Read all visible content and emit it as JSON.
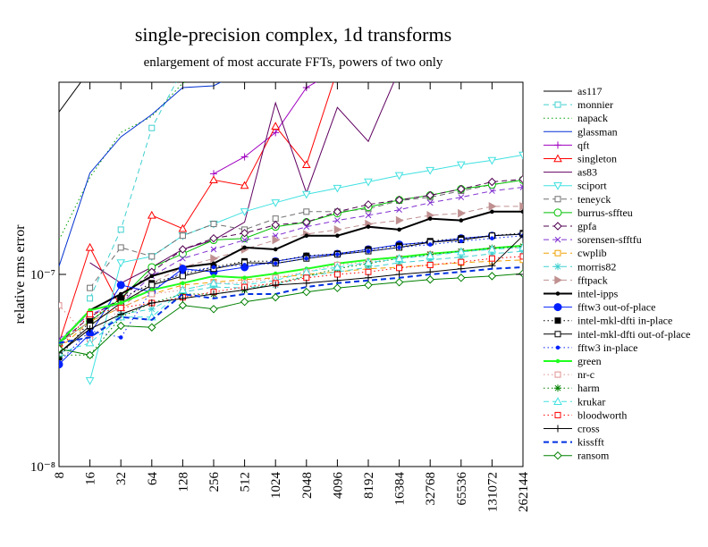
{
  "chart_data": {
    "type": "line",
    "title": "single-precision complex, 1d transforms",
    "subtitle": "enlargement of most accurate FFTs, powers of two only",
    "y_label": "relative rms error",
    "log_scale": true,
    "ylim": [
      1e-08,
      1e-06
    ],
    "yticks": [
      {
        "value": 1e-08,
        "label": "10⁻⁸"
      },
      {
        "value": 1e-07,
        "label": "10⁻⁷"
      }
    ],
    "categories": [
      "8",
      "16",
      "32",
      "64",
      "128",
      "256",
      "512",
      "1024",
      "2048",
      "4096",
      "8192",
      "16384",
      "32768",
      "65536",
      "131072",
      "262144"
    ],
    "series": [
      {
        "name": "as117",
        "color": "#000000",
        "dash": "solid",
        "marker": "none",
        "values": [
          7e-07,
          1.16e-06,
          null,
          null,
          null,
          null,
          null,
          null,
          null,
          null,
          null,
          null,
          null,
          null,
          null,
          null
        ]
      },
      {
        "name": "monnier",
        "color": "#40d0d0",
        "dash": "dashed",
        "marker": "square-open",
        "values": [
          null,
          7.5e-08,
          1.71e-07,
          5.78e-07,
          1.16e-06,
          null,
          null,
          null,
          null,
          null,
          null,
          null,
          null,
          null,
          null,
          null
        ]
      },
      {
        "name": "napack",
        "color": "#00a000",
        "dash": "dotted",
        "marker": "none",
        "values": [
          1.51e-07,
          3.2e-07,
          5.47e-07,
          6.64e-07,
          9.89e-07,
          1.16e-06,
          null,
          null,
          null,
          null,
          null,
          null,
          null,
          null,
          null,
          null
        ]
      },
      {
        "name": "glassman",
        "color": "#0030d0",
        "dash": "solid",
        "marker": "none",
        "values": [
          1.1e-07,
          3.37e-07,
          5.19e-07,
          6.79e-07,
          9.38e-07,
          9.58e-07,
          1.16e-06,
          null,
          null,
          null,
          null,
          null,
          null,
          null,
          null,
          null
        ]
      },
      {
        "name": "qft",
        "color": "#a000c0",
        "dash": "solid",
        "marker": "plus",
        "values": [
          null,
          null,
          null,
          null,
          null,
          3.34e-07,
          4.09e-07,
          5.47e-07,
          9.38e-07,
          1.16e-06,
          null,
          null,
          null,
          null,
          null,
          null
        ]
      },
      {
        "name": "singleton",
        "color": "#ff0000",
        "dash": "solid",
        "marker": "triangle-open",
        "values": [
          4.4e-08,
          1.38e-07,
          6.7e-08,
          2.03e-07,
          1.73e-07,
          3.1e-07,
          2.9e-07,
          5.9e-07,
          3.72e-07,
          1.16e-06,
          null,
          null,
          null,
          null,
          null,
          null
        ]
      },
      {
        "name": "as83",
        "color": "#600060",
        "dash": "solid",
        "marker": "none",
        "values": [
          null,
          1.15e-07,
          9e-08,
          1.09e-07,
          1.35e-07,
          1.51e-07,
          1.87e-07,
          7.81e-07,
          2.66e-07,
          7.39e-07,
          4.92e-07,
          1.16e-06,
          null,
          null,
          null,
          null
        ]
      },
      {
        "name": "sciport",
        "color": "#40e0e0",
        "dash": "solid",
        "marker": "tridown-open",
        "values": [
          null,
          2.8e-08,
          1.15e-07,
          1.24e-07,
          1.59e-07,
          1.83e-07,
          2.12e-07,
          2.36e-07,
          2.61e-07,
          2.81e-07,
          3.03e-07,
          3.27e-07,
          3.48e-07,
          3.72e-07,
          3.92e-07,
          4.18e-07
        ]
      },
      {
        "name": "teneyck",
        "color": "#707070",
        "dash": "dashed",
        "marker": "square-open",
        "values": [
          null,
          8.5e-08,
          1.38e-07,
          1.24e-07,
          1.59e-07,
          1.83e-07,
          1.71e-07,
          1.95e-07,
          2.12e-07,
          2.12e-07,
          2.19e-07,
          2.42e-07,
          2.52e-07,
          2.72e-07,
          2.93e-07,
          3.1e-07
        ]
      },
      {
        "name": "burrus-sffteu",
        "color": "#00c000",
        "dash": "solid",
        "marker": "circle-open",
        "values": [
          4.4e-08,
          5.7e-08,
          7.5e-08,
          1.09e-07,
          1.28e-07,
          1.51e-07,
          1.54e-07,
          1.77e-07,
          1.87e-07,
          2.08e-07,
          2.24e-07,
          2.44e-07,
          2.58e-07,
          2.78e-07,
          2.93e-07,
          3.1e-07
        ]
      },
      {
        "name": "gpfa",
        "color": "#500050",
        "dash": "dashed",
        "marker": "diamond-open",
        "values": [
          4.4e-08,
          6e-08,
          7.5e-08,
          1.03e-07,
          1.35e-07,
          1.54e-07,
          1.64e-07,
          1.81e-07,
          1.87e-07,
          2.12e-07,
          2.31e-07,
          2.44e-07,
          2.58e-07,
          2.78e-07,
          3.03e-07,
          3.13e-07
        ]
      },
      {
        "name": "sorensen-sfftfu",
        "color": "#8030d0",
        "dash": "dashed",
        "marker": "cross",
        "values": [
          4.6e-08,
          6.2e-08,
          7.1e-08,
          9.8e-08,
          1.21e-07,
          1.35e-07,
          1.51e-07,
          1.59e-07,
          1.77e-07,
          1.91e-07,
          2.03e-07,
          2.17e-07,
          2.36e-07,
          2.52e-07,
          2.72e-07,
          2.84e-07
        ]
      },
      {
        "name": "cwplib",
        "color": "#f0a000",
        "dash": "dashed",
        "marker": "square-open",
        "values": [
          4.1e-08,
          5.7e-08,
          6.7e-08,
          7.9e-08,
          8.8e-08,
          9.1e-08,
          9.4e-08,
          9.6e-08,
          1e-07,
          1.03e-07,
          1.07e-07,
          1.09e-07,
          1.12e-07,
          1.15e-07,
          1.17e-07,
          1.19e-07
        ]
      },
      {
        "name": "morris82",
        "color": "#40d0d0",
        "dash": "dashed",
        "marker": "star",
        "values": [
          4.4e-08,
          4.7e-08,
          6.2e-08,
          6.6e-08,
          8.1e-08,
          8.6e-08,
          8.5e-08,
          8.8e-08,
          9.8e-08,
          1.03e-07,
          1.09e-07,
          1.15e-07,
          1.19e-07,
          1.23e-07,
          1.28e-07,
          1.32e-07
        ]
      },
      {
        "name": "fftpack",
        "color": "#c09090",
        "dash": "dashed",
        "marker": "triright-filled",
        "values": [
          4.4e-08,
          5.7e-08,
          6.7e-08,
          9e-08,
          1.09e-07,
          1.21e-07,
          1.35e-07,
          1.51e-07,
          1.62e-07,
          1.71e-07,
          1.83e-07,
          1.91e-07,
          2.03e-07,
          2.08e-07,
          2.26e-07,
          2.26e-07
        ]
      },
      {
        "name": "intel-ipps",
        "color": "#000000",
        "dash": "solid",
        "width": 2,
        "marker": "dot",
        "values": [
          4.4e-08,
          6.5e-08,
          7.9e-08,
          9.8e-08,
          1.09e-07,
          1.14e-07,
          1.38e-07,
          1.35e-07,
          1.59e-07,
          1.59e-07,
          1.77e-07,
          1.71e-07,
          1.95e-07,
          1.91e-07,
          2.12e-07,
          2.12e-07
        ]
      },
      {
        "name": "fftw3 out-of-place",
        "color": "#0020ff",
        "dash": "solid",
        "marker": "circle-filled",
        "values": [
          3.4e-08,
          4.9e-08,
          8.8e-08,
          8.1e-08,
          1.07e-07,
          1.03e-07,
          1.09e-07,
          1.17e-07,
          1.24e-07,
          1.28e-07,
          1.35e-07,
          1.43e-07,
          1.47e-07,
          1.54e-07,
          1.59e-07,
          1.62e-07
        ]
      },
      {
        "name": "intel-mkl-dfti in-place",
        "color": "#000000",
        "dash": "dotted",
        "marker": "square-filled",
        "values": [
          3.7e-08,
          5.7e-08,
          7.5e-08,
          9e-08,
          1e-07,
          1.09e-07,
          1.17e-07,
          1.17e-07,
          1.25e-07,
          1.28e-07,
          1.35e-07,
          1.41e-07,
          1.49e-07,
          1.54e-07,
          1.59e-07,
          1.64e-07
        ]
      },
      {
        "name": "intel-mkl-dfti out-of-place",
        "color": "#000000",
        "dash": "solid",
        "marker": "square-open",
        "values": [
          3.9e-08,
          5.4e-08,
          7.1e-08,
          8.8e-08,
          9.8e-08,
          1.07e-07,
          1.15e-07,
          1.14e-07,
          1.21e-07,
          1.27e-07,
          1.32e-07,
          1.38e-07,
          1.47e-07,
          1.51e-07,
          1.59e-07,
          1.62e-07
        ]
      },
      {
        "name": "fftw3 in-place",
        "color": "#0020ff",
        "dash": "dotted",
        "marker": "dot",
        "values": [
          3.5e-08,
          5.1e-08,
          4.7e-08,
          8.3e-08,
          1.03e-07,
          1.09e-07,
          1.12e-07,
          1.14e-07,
          1.21e-07,
          1.27e-07,
          1.32e-07,
          1.38e-07,
          1.43e-07,
          1.49e-07,
          1.54e-07,
          1.59e-07
        ]
      },
      {
        "name": "green",
        "color": "#20ff20",
        "dash": "solid",
        "width": 2,
        "marker": "dot",
        "values": [
          4.4e-08,
          6.5e-08,
          7.1e-08,
          8.3e-08,
          9e-08,
          9.8e-08,
          9.6e-08,
          1.01e-07,
          1.07e-07,
          1.14e-07,
          1.19e-07,
          1.23e-07,
          1.28e-07,
          1.32e-07,
          1.37e-07,
          1.41e-07
        ]
      },
      {
        "name": "nr-c",
        "color": "#e09090",
        "dash": "dotted",
        "marker": "square-open",
        "values": [
          6.9e-08,
          4.6e-08,
          6.7e-08,
          7.9e-08,
          8.3e-08,
          9e-08,
          9e-08,
          9.6e-08,
          1.03e-07,
          1.12e-07,
          1.16e-07,
          1.21e-07,
          1.27e-07,
          1.31e-07,
          1.35e-07,
          1.38e-07
        ]
      },
      {
        "name": "harm",
        "color": "#008000",
        "dash": "dotted",
        "marker": "star",
        "values": [
          3.8e-08,
          3.8e-08,
          6e-08,
          7.1e-08,
          7.9e-08,
          7.9e-08,
          8.3e-08,
          9e-08,
          9.8e-08,
          1.07e-07,
          1.14e-07,
          1.21e-07,
          1.27e-07,
          1.32e-07,
          1.37e-07,
          1.4e-07
        ]
      },
      {
        "name": "krukar",
        "color": "#40e0e0",
        "dash": "dashed",
        "marker": "triangle-open",
        "values": [
          3.9e-08,
          4.4e-08,
          6e-08,
          6e-08,
          8.3e-08,
          9e-08,
          8.8e-08,
          9.3e-08,
          1.03e-07,
          1.09e-07,
          1.15e-07,
          1.21e-07,
          1.25e-07,
          1.31e-07,
          1.35e-07,
          1.38e-07
        ]
      },
      {
        "name": "bloodworth",
        "color": "#ff0000",
        "dash": "dotted",
        "marker": "square-open",
        "values": [
          4.1e-08,
          6.2e-08,
          6.7e-08,
          7.1e-08,
          7.6e-08,
          8.1e-08,
          8.6e-08,
          9e-08,
          9.6e-08,
          1e-07,
          1.03e-07,
          1.08e-07,
          1.12e-07,
          1.16e-07,
          1.21e-07,
          1.24e-07
        ]
      },
      {
        "name": "cross",
        "color": "#000000",
        "dash": "solid",
        "marker": "plus",
        "values": [
          3.9e-08,
          5.2e-08,
          6.2e-08,
          7.1e-08,
          7.5e-08,
          7.9e-08,
          8.3e-08,
          8.8e-08,
          9e-08,
          9.3e-08,
          9.6e-08,
          1e-07,
          1.03e-07,
          1.07e-07,
          1.11e-07,
          1.59e-07
        ]
      },
      {
        "name": "kissfft",
        "color": "#0030e0",
        "dash": "dashed",
        "width": 2,
        "marker": "none",
        "values": [
          4.4e-08,
          4.7e-08,
          6e-08,
          5.8e-08,
          7.9e-08,
          7.5e-08,
          7.9e-08,
          7.9e-08,
          8.6e-08,
          9e-08,
          9.3e-08,
          9.6e-08,
          1e-07,
          1.03e-07,
          1.07e-07,
          1.09e-07
        ]
      },
      {
        "name": "ransom",
        "color": "#008000",
        "dash": "solid",
        "marker": "diamond-open",
        "values": [
          4.1e-08,
          3.8e-08,
          5.4e-08,
          5.3e-08,
          6.9e-08,
          6.6e-08,
          7.2e-08,
          7.6e-08,
          8.1e-08,
          8.5e-08,
          8.8e-08,
          9.1e-08,
          9.4e-08,
          9.6e-08,
          9.8e-08,
          1.01e-07
        ]
      }
    ]
  }
}
